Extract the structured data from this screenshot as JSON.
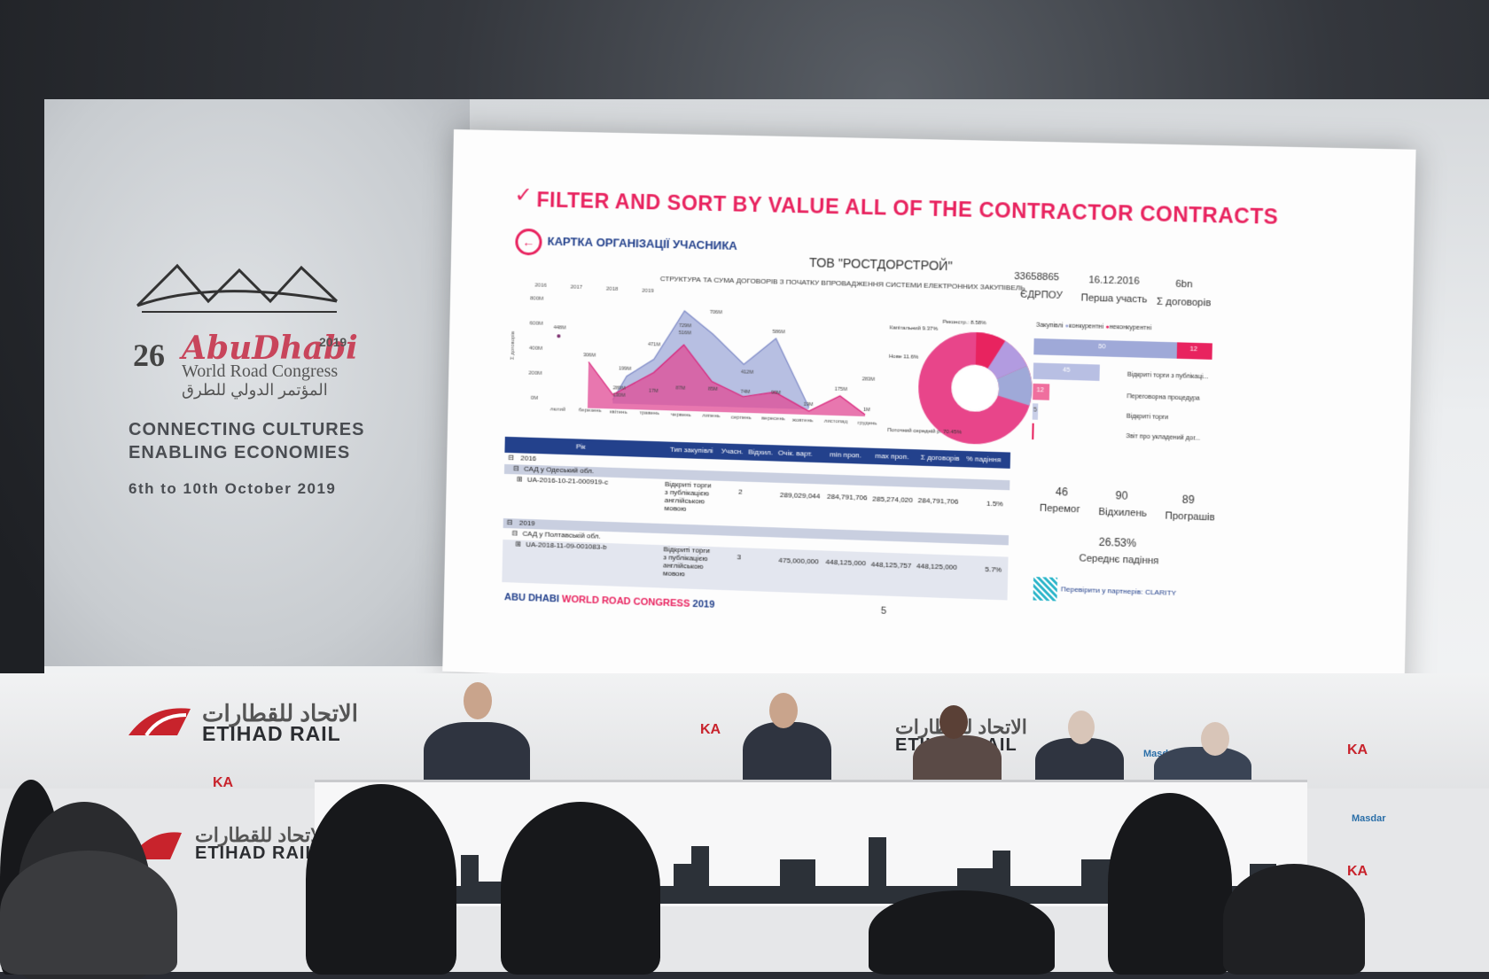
{
  "slide": {
    "heading": "FILTER AND SORT BY VALUE ALL OF THE CONTRACTOR CONTRACTS",
    "card_title": "КАРТКА ОРГАНІЗАЦІЇ УЧАСНИКА",
    "organization": "ТОВ \"РОСТДОРСТРОЙ\"",
    "stats": [
      {
        "value": "33658865",
        "label": "ЄДРПОУ"
      },
      {
        "value": "16.12.2016",
        "label": "Перша участь"
      },
      {
        "value": "6bn",
        "label": "Σ договорів"
      }
    ],
    "chart_title": "СТРУКТУРА ТА СУМА ДОГОВОРІВ З ПОЧАТКУ ВПРОВАДЖЕННЯ СИСТЕМИ ЕЛЕКТРОННИХ ЗАКУПІВЕЛЬ",
    "legend_years": [
      "2016",
      "2017",
      "2018",
      "2019"
    ],
    "y_ticks": [
      "800M",
      "600M",
      "400M",
      "200M",
      "0M"
    ],
    "y_label": "Σ договорів",
    "months": [
      "лютий",
      "березень",
      "квітень",
      "травень",
      "червень",
      "липень",
      "серпень",
      "вересень",
      "жовтень",
      "листопад",
      "грудень"
    ],
    "point_labels": [
      "448M",
      "306M",
      "471M",
      "199M",
      "729M",
      "516M",
      "706M",
      "412M",
      "586M",
      "17M",
      "87M",
      "85M",
      "74M",
      "90M",
      "19M",
      "175M",
      "283M",
      "1M",
      "130M",
      "289M"
    ],
    "donut_labels": {
      "reconstr": "Реконстр.: 8.58%",
      "capital": "Капітальний 9.37%",
      "new": "Нове 11.6%",
      "current": "Поточний середній р. 70.45%"
    },
    "bar_legend": {
      "title": "Закупівлі",
      "a": "конкурентні",
      "b": "неконкурентні"
    },
    "bars": [
      {
        "value": "50",
        "value2": "12",
        "label": ""
      },
      {
        "value": "45",
        "label": "Відкриті торги з публікаці..."
      },
      {
        "value": "12",
        "label": "Переговорна процедура"
      },
      {
        "value": "5",
        "label": "Відкриті торги"
      },
      {
        "value": "",
        "label": "Звіт про укладений дог..."
      }
    ],
    "table": {
      "headers": [
        "Рік",
        "Тип закупівлі",
        "Учасн.",
        "Відхил.",
        "Очік. варт.",
        "min проп.",
        "max проп.",
        "Σ договорів",
        "% падіння"
      ],
      "year1": "2016",
      "region1": "САД у Одеський обл.",
      "row1": {
        "id": "UA-2016-10-21-000919-c",
        "type": "Відкриті торги з публікацією англійською мовою",
        "participants": "2",
        "expected": "289,029,044",
        "min": "284,791,706",
        "max": "285,274,020",
        "sum": "284,791,706",
        "drop": "1.5%"
      },
      "year2": "2019",
      "region2": "САД у Полтавській обл.",
      "row2": {
        "id": "UA-2018-11-09-001083-b",
        "type": "Відкриті торги з публікацією англійською мовою",
        "participants": "3",
        "expected": "475,000,000",
        "min": "448,125,000",
        "max": "448,125,757",
        "sum": "448,125,000",
        "drop": "5.7%"
      }
    },
    "kpis": [
      {
        "value": "46",
        "label": "Перемог"
      },
      {
        "value": "90",
        "label": "Відхилень"
      },
      {
        "value": "89",
        "label": "Програшів"
      }
    ],
    "avg_drop": {
      "value": "26.53%",
      "label": "Середнє падіння"
    },
    "partner": "Перевірити у партнерів: CLARITY",
    "footer_a": "ABU DHABI ",
    "footer_b": "WORLD ROAD CONGRESS",
    "footer_c": " 2019",
    "page": "5"
  },
  "backdrop": {
    "logo_num": "26",
    "logo_city": "AbuDhabi",
    "logo_year": "2019",
    "logo_name": "World Road Congress",
    "logo_arabic": "المؤتمر الدولي للطرق",
    "tagline1": "CONNECTING CULTURES",
    "tagline2": "ENABLING ECONOMIES",
    "dates": "6th to 10th October 2019",
    "etihad_ar": "الاتحاد للقطارات",
    "etihad_en": "ETIHAD RAIL",
    "masdar": "Masdar"
  },
  "colors": {
    "pink": "#e8235f",
    "navy": "#23418c",
    "lavender": "#9fa9d8",
    "magenta": "#e04a94"
  }
}
